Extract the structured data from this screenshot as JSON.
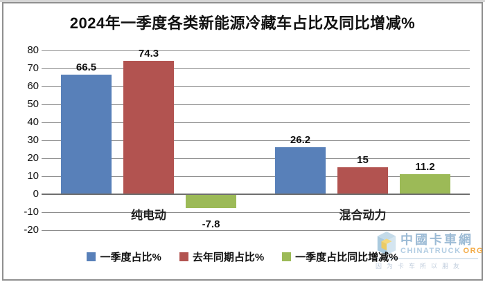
{
  "title": "2024年一季度各类新能源冷藏车占比及同比增减%",
  "chart_data": {
    "type": "bar",
    "title": "2024年一季度各类新能源冷藏车占比及同比增减%",
    "categories": [
      "纯电动",
      "混合动力"
    ],
    "series": [
      {
        "name": "一季度占比%",
        "color": "#5880B9",
        "values": [
          66.5,
          26.2
        ]
      },
      {
        "name": "去年同期占比%",
        "color": "#B25350",
        "values": [
          74.3,
          15
        ]
      },
      {
        "name": "一季度占比同比增减%",
        "color": "#9CBA57",
        "values": [
          -7.8,
          11.2
        ]
      }
    ],
    "xlabel": "",
    "ylabel": "",
    "ylim": [
      -20,
      80
    ],
    "yticks": [
      80,
      70,
      60,
      50,
      40,
      30,
      20,
      10,
      0,
      -10,
      -20
    ],
    "grid": true,
    "legend_position": "bottom"
  },
  "watermark": {
    "name_cn": "中國卡車網",
    "site": "CHINATRUCK",
    "tld": "ORG",
    "slogan": "因为卡车所以朋友"
  }
}
